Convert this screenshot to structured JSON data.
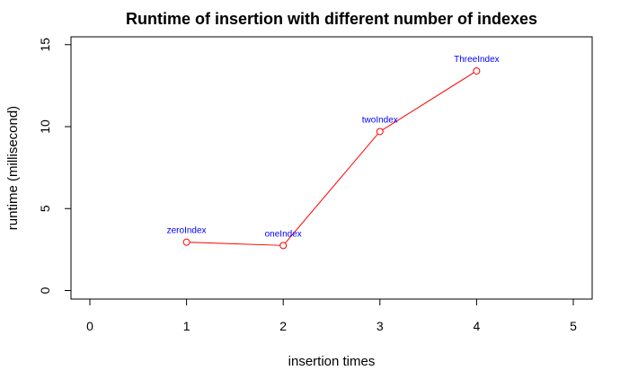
{
  "chart_data": {
    "type": "line",
    "title": "Runtime of insertion with different number of indexes",
    "xlabel": "insertion times",
    "ylabel": "runtime (millisecond)",
    "xlim": [
      0,
      5
    ],
    "ylim": [
      0,
      15
    ],
    "x_ticks": [
      "0",
      "1",
      "2",
      "3",
      "4",
      "5"
    ],
    "y_ticks": [
      "0",
      "5",
      "10",
      "15"
    ],
    "grid": false,
    "legend": "none",
    "series": [
      {
        "x": [
          1,
          2,
          3,
          4
        ],
        "y": [
          2.95,
          2.75,
          9.7,
          13.4
        ],
        "point_labels": [
          "zeroIndex",
          "oneIndex",
          "twoIndex",
          "ThreeIndex"
        ]
      }
    ],
    "colors": {
      "line": "#ff0000",
      "labels": "#0000ff",
      "axes": "#000000"
    }
  }
}
